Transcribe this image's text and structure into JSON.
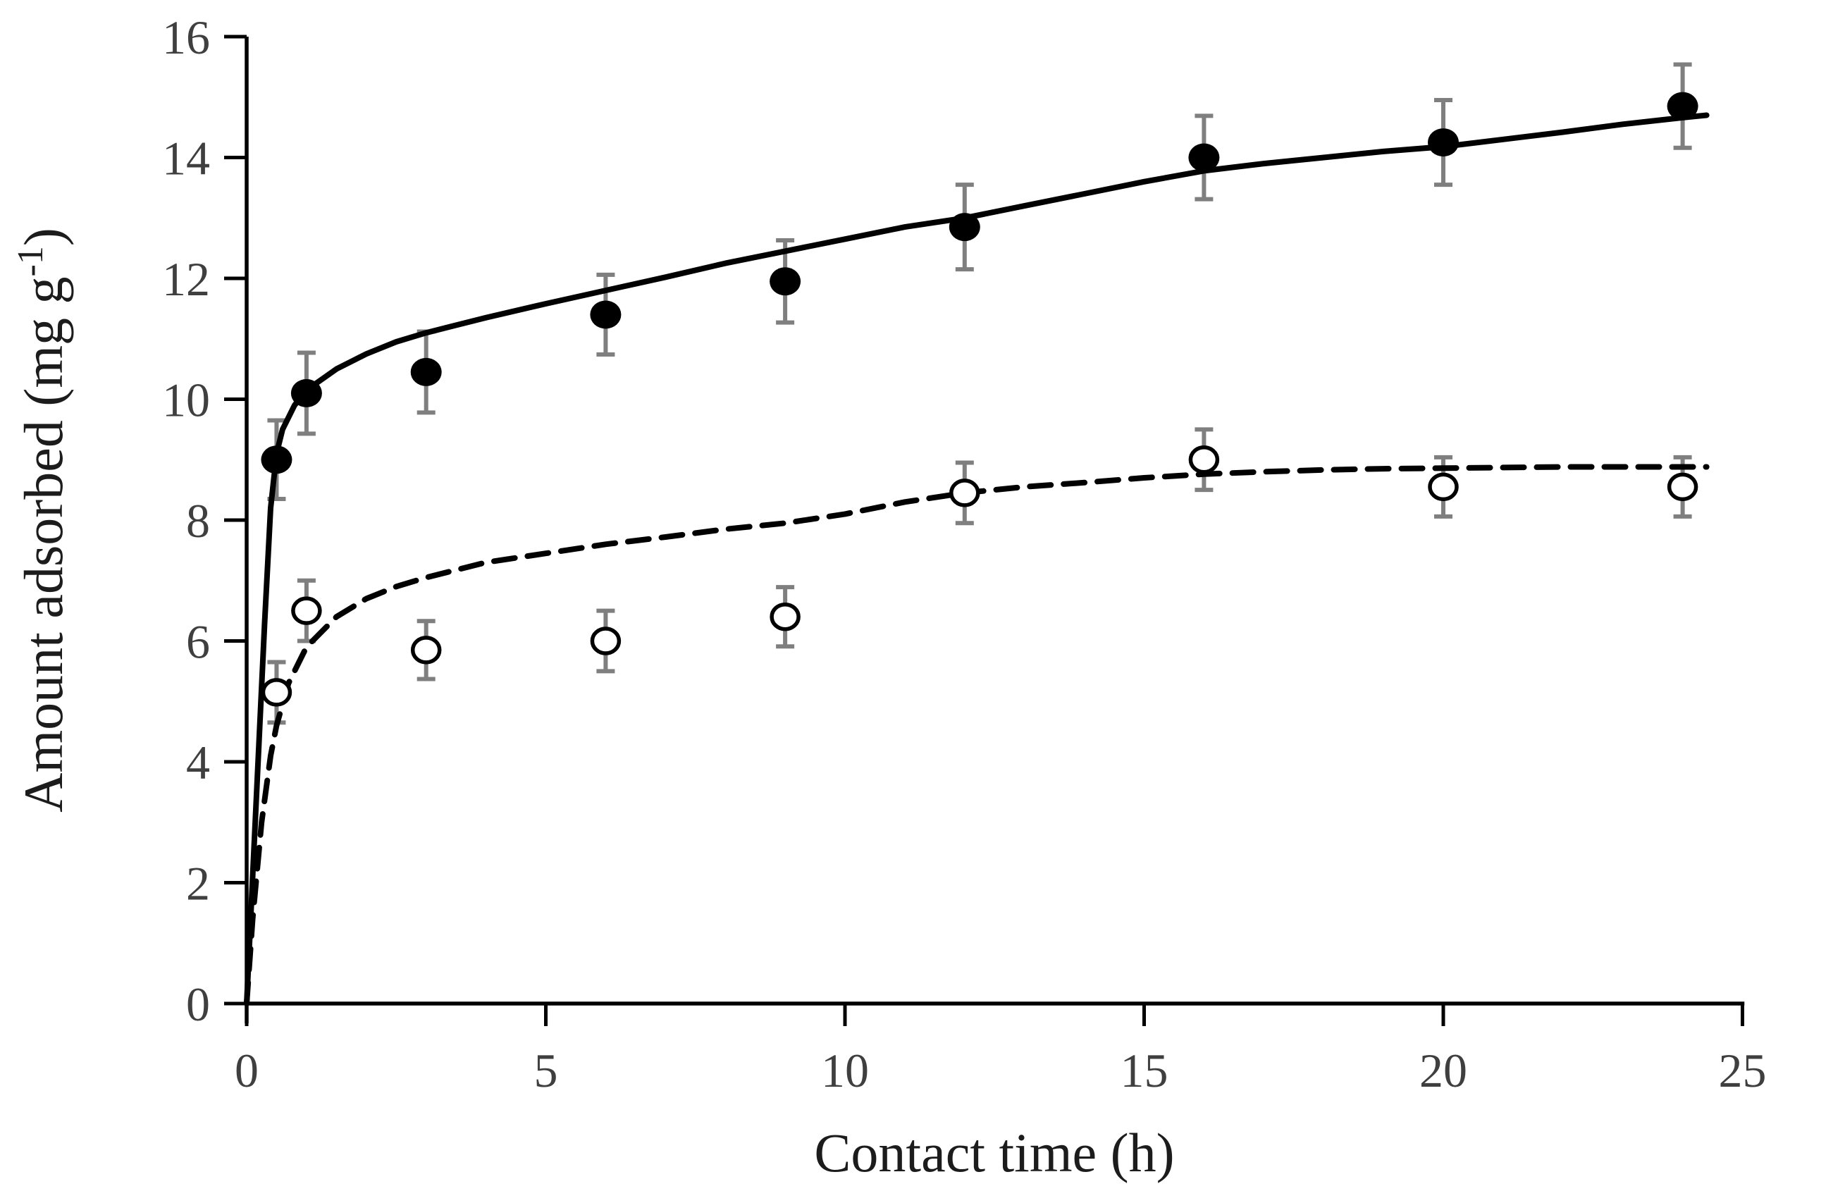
{
  "figure": {
    "background_color": "#ffffff",
    "title": ""
  },
  "chart_data": {
    "type": "scatter",
    "title": "",
    "xlabel": "Contact time (h)",
    "ylabel": "Amount adsorbed (mg g⁻¹)",
    "ylabel_parts": {
      "prefix": "Amount adsorbed (mg g",
      "superscript": "-1",
      "suffix": ")"
    },
    "xlim": [
      0,
      25
    ],
    "ylim": [
      0,
      16
    ],
    "x_ticks": [
      0,
      5,
      10,
      15,
      20,
      25
    ],
    "y_ticks": [
      0,
      2,
      4,
      6,
      8,
      10,
      12,
      14,
      16
    ],
    "grid": false,
    "legend": "none",
    "colors": {
      "axis": "#000000",
      "tick_label": "#3f3f3f",
      "error_bar": "#7f7f7f",
      "curve": "#000000",
      "filled_marker": "#000000",
      "open_marker_fill": "#ffffff",
      "open_marker_stroke": "#000000"
    },
    "series": [
      {
        "name": "filled-circles-solid-fit",
        "marker": "filled-circle",
        "line": "solid",
        "x": [
          0.5,
          1,
          3,
          6,
          9,
          12,
          16,
          20,
          24
        ],
        "y": [
          9.0,
          10.1,
          10.45,
          11.4,
          11.95,
          12.85,
          14.0,
          14.25,
          14.85
        ],
        "yerr": [
          0.65,
          0.67,
          0.67,
          0.66,
          0.68,
          0.7,
          0.69,
          0.7,
          0.69
        ],
        "fit_curve": [
          [
            0,
            0
          ],
          [
            0.1,
            2.1
          ],
          [
            0.2,
            4.2
          ],
          [
            0.3,
            6.3
          ],
          [
            0.4,
            8.2
          ],
          [
            0.5,
            9.1
          ],
          [
            0.6,
            9.5
          ],
          [
            0.8,
            9.9
          ],
          [
            1,
            10.15
          ],
          [
            1.5,
            10.5
          ],
          [
            2,
            10.75
          ],
          [
            2.5,
            10.95
          ],
          [
            3,
            11.1
          ],
          [
            4,
            11.35
          ],
          [
            5,
            11.58
          ],
          [
            6,
            11.8
          ],
          [
            7,
            12.02
          ],
          [
            8,
            12.25
          ],
          [
            9,
            12.45
          ],
          [
            10,
            12.65
          ],
          [
            11,
            12.85
          ],
          [
            12,
            13.0
          ],
          [
            13,
            13.2
          ],
          [
            14,
            13.4
          ],
          [
            15,
            13.6
          ],
          [
            16,
            13.78
          ],
          [
            17,
            13.9
          ],
          [
            18,
            14.0
          ],
          [
            19,
            14.1
          ],
          [
            20,
            14.18
          ],
          [
            21,
            14.3
          ],
          [
            22,
            14.42
          ],
          [
            23,
            14.55
          ],
          [
            24,
            14.66
          ],
          [
            24.4,
            14.7
          ]
        ]
      },
      {
        "name": "open-circles-dashed-fit",
        "marker": "open-circle",
        "line": "dashed",
        "x": [
          0.5,
          1,
          3,
          6,
          9,
          12,
          16,
          20,
          24
        ],
        "y": [
          5.15,
          6.5,
          5.85,
          6.0,
          6.4,
          8.45,
          9.0,
          8.55,
          8.55
        ],
        "yerr": [
          0.5,
          0.5,
          0.48,
          0.5,
          0.49,
          0.5,
          0.5,
          0.49,
          0.49
        ],
        "fit_curve": [
          [
            0,
            0
          ],
          [
            0.1,
            1.4
          ],
          [
            0.25,
            3.0
          ],
          [
            0.4,
            4.1
          ],
          [
            0.5,
            4.6
          ],
          [
            0.7,
            5.3
          ],
          [
            1,
            5.9
          ],
          [
            1.5,
            6.4
          ],
          [
            2,
            6.7
          ],
          [
            2.5,
            6.9
          ],
          [
            3,
            7.05
          ],
          [
            4,
            7.3
          ],
          [
            5,
            7.45
          ],
          [
            6,
            7.6
          ],
          [
            7,
            7.72
          ],
          [
            8,
            7.85
          ],
          [
            9,
            7.95
          ],
          [
            10,
            8.1
          ],
          [
            11,
            8.3
          ],
          [
            12,
            8.45
          ],
          [
            13,
            8.55
          ],
          [
            14,
            8.62
          ],
          [
            15,
            8.7
          ],
          [
            16,
            8.76
          ],
          [
            17,
            8.8
          ],
          [
            18,
            8.83
          ],
          [
            19,
            8.85
          ],
          [
            20,
            8.86
          ],
          [
            21,
            8.87
          ],
          [
            22,
            8.88
          ],
          [
            23,
            8.88
          ],
          [
            24,
            8.88
          ],
          [
            24.4,
            8.88
          ]
        ]
      }
    ]
  }
}
